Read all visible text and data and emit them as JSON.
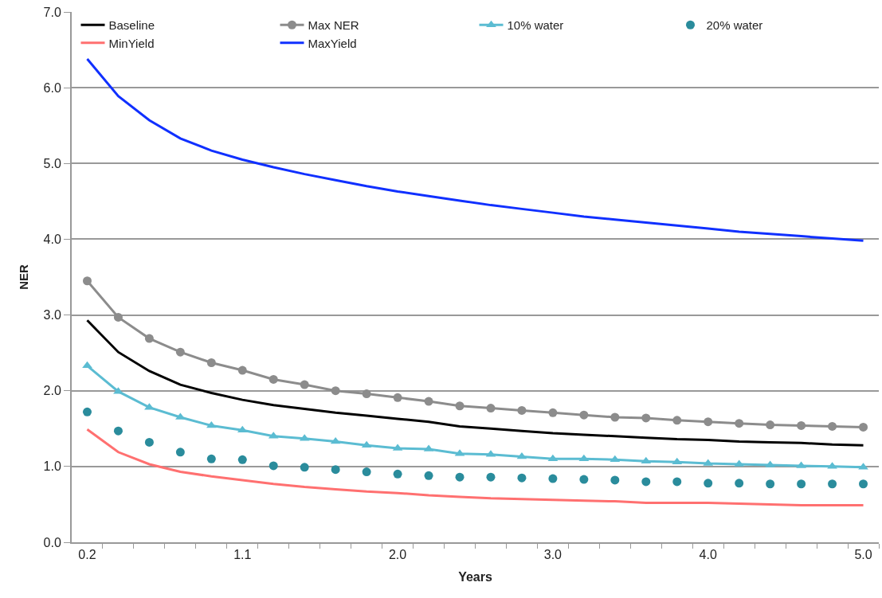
{
  "chart_data": {
    "type": "line",
    "xlabel": "Years",
    "ylabel": "NER",
    "categories": [
      "0.2",
      null,
      null,
      null,
      null,
      "1.1",
      null,
      null,
      null,
      null,
      "2.0",
      null,
      null,
      null,
      null,
      "3.0",
      null,
      null,
      null,
      null,
      "4.0",
      null,
      null,
      null,
      null,
      "5.0"
    ],
    "ylim": [
      0,
      7
    ],
    "yticks": [
      {
        "value": 0,
        "label": "0.0"
      },
      {
        "value": 1,
        "label": "1.0"
      },
      {
        "value": 2,
        "label": "2.0"
      },
      {
        "value": 3,
        "label": "3.0"
      },
      {
        "value": 4,
        "label": "4.0"
      },
      {
        "value": 5,
        "label": "5.0"
      },
      {
        "value": 6,
        "label": "6.0"
      },
      {
        "value": 7,
        "label": "7.0"
      }
    ],
    "grid": "y",
    "legend": "top",
    "line_style": "solid",
    "series": [
      {
        "name": "Baseline",
        "color": "#000000",
        "marker": "none",
        "values": [
          2.93,
          2.51,
          2.26,
          2.08,
          1.97,
          1.88,
          1.81,
          1.76,
          1.71,
          1.67,
          1.63,
          1.59,
          1.53,
          1.5,
          1.47,
          1.44,
          1.42,
          1.4,
          1.38,
          1.36,
          1.35,
          1.33,
          1.32,
          1.31,
          1.29,
          1.28
        ]
      },
      {
        "name": "Max NER",
        "color": "#8c8c8c",
        "marker": "circle",
        "values": [
          3.45,
          2.97,
          2.69,
          2.51,
          2.37,
          2.27,
          2.15,
          2.08,
          2.0,
          1.96,
          1.91,
          1.86,
          1.8,
          1.77,
          1.74,
          1.71,
          1.68,
          1.65,
          1.64,
          1.61,
          1.59,
          1.57,
          1.55,
          1.54,
          1.53,
          1.52
        ]
      },
      {
        "name": "10% water",
        "color": "#5bbcd2",
        "marker": "triangle",
        "values": [
          2.33,
          1.99,
          1.78,
          1.65,
          1.54,
          1.48,
          1.4,
          1.37,
          1.33,
          1.28,
          1.24,
          1.23,
          1.17,
          1.16,
          1.13,
          1.1,
          1.1,
          1.09,
          1.07,
          1.06,
          1.04,
          1.03,
          1.02,
          1.01,
          1.0,
          0.99
        ]
      },
      {
        "name": "20% water",
        "type": "scatter",
        "color": "#2a8c9c",
        "marker": "circle",
        "values": [
          1.72,
          1.47,
          1.32,
          1.19,
          1.1,
          1.09,
          1.01,
          0.99,
          0.96,
          0.93,
          0.9,
          0.88,
          0.86,
          0.86,
          0.85,
          0.84,
          0.83,
          0.82,
          0.8,
          0.8,
          0.78,
          0.78,
          0.77,
          0.77,
          0.77,
          0.77
        ]
      },
      {
        "name": "MinYield",
        "color": "#ff7070",
        "marker": "none",
        "values": [
          1.49,
          1.19,
          1.03,
          0.93,
          0.87,
          0.82,
          0.77,
          0.73,
          0.7,
          0.67,
          0.65,
          0.62,
          0.6,
          0.58,
          0.57,
          0.56,
          0.55,
          0.54,
          0.52,
          0.52,
          0.52,
          0.51,
          0.5,
          0.49,
          0.49,
          0.49
        ]
      },
      {
        "name": "MaxYield",
        "color": "#1030ff",
        "marker": "none",
        "values": [
          6.38,
          5.89,
          5.57,
          5.33,
          5.17,
          5.05,
          4.95,
          4.86,
          4.78,
          4.7,
          4.63,
          4.57,
          4.51,
          4.45,
          4.4,
          4.35,
          4.3,
          4.26,
          4.22,
          4.18,
          4.14,
          4.1,
          4.07,
          4.04,
          4.01,
          3.98
        ]
      }
    ]
  }
}
